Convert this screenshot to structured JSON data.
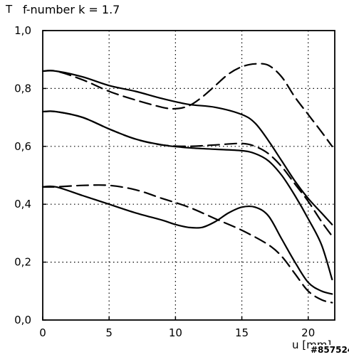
{
  "chart_data": {
    "type": "line",
    "title": "f-number k = 1.7",
    "ylabel": "T",
    "xlabel": "u [mm]",
    "reference": "#857524",
    "xlim": [
      0,
      22
    ],
    "ylim": [
      0,
      1.0
    ],
    "xticks": [
      "0",
      "5",
      "10",
      "15",
      "20"
    ],
    "yticks": [
      "0,0",
      "0,2",
      "0,4",
      "0,6",
      "0,8",
      "1,0"
    ],
    "grid": true,
    "series": [
      {
        "style": "solid",
        "x": [
          0,
          1,
          3,
          5,
          7,
          9,
          11,
          13,
          15,
          16,
          17,
          18,
          19,
          20,
          21,
          21.8
        ],
        "y": [
          0.86,
          0.86,
          0.84,
          0.81,
          0.79,
          0.765,
          0.745,
          0.735,
          0.71,
          0.68,
          0.62,
          0.55,
          0.48,
          0.42,
          0.37,
          0.33
        ]
      },
      {
        "style": "dashed",
        "x": [
          0,
          1,
          3,
          5,
          7,
          9,
          10,
          11,
          12,
          13,
          14,
          15,
          16,
          17,
          18,
          19,
          20,
          21,
          21.8
        ],
        "y": [
          0.86,
          0.86,
          0.83,
          0.79,
          0.76,
          0.735,
          0.73,
          0.74,
          0.77,
          0.81,
          0.85,
          0.875,
          0.885,
          0.88,
          0.84,
          0.77,
          0.71,
          0.65,
          0.6
        ]
      },
      {
        "style": "solid",
        "x": [
          0,
          1,
          3,
          5,
          7,
          9,
          11,
          13,
          15,
          16,
          17,
          18,
          19,
          20,
          21,
          21.8
        ],
        "y": [
          0.72,
          0.72,
          0.7,
          0.66,
          0.625,
          0.605,
          0.595,
          0.59,
          0.585,
          0.575,
          0.55,
          0.5,
          0.43,
          0.35,
          0.26,
          0.14
        ]
      },
      {
        "style": "dashed",
        "x": [
          0,
          1,
          3,
          5,
          7,
          9,
          11,
          13,
          15,
          16,
          17,
          18,
          19,
          20,
          21,
          21.8
        ],
        "y": [
          0.72,
          0.72,
          0.7,
          0.66,
          0.625,
          0.605,
          0.6,
          0.605,
          0.61,
          0.6,
          0.575,
          0.53,
          0.47,
          0.41,
          0.34,
          0.29
        ]
      },
      {
        "style": "solid",
        "x": [
          0,
          1,
          3,
          5,
          7,
          9,
          10,
          11,
          12,
          13,
          14,
          15,
          16,
          17,
          18,
          19,
          20,
          21,
          21.8
        ],
        "y": [
          0.46,
          0.46,
          0.43,
          0.4,
          0.37,
          0.345,
          0.33,
          0.32,
          0.32,
          0.34,
          0.37,
          0.39,
          0.39,
          0.36,
          0.28,
          0.2,
          0.13,
          0.1,
          0.09
        ]
      },
      {
        "style": "dashed",
        "x": [
          0,
          1,
          3,
          5,
          7,
          9,
          11,
          13,
          15,
          17,
          18,
          19,
          20,
          21,
          21.8
        ],
        "y": [
          0.46,
          0.46,
          0.465,
          0.465,
          0.45,
          0.42,
          0.39,
          0.35,
          0.31,
          0.26,
          0.22,
          0.16,
          0.1,
          0.07,
          0.06
        ]
      }
    ]
  }
}
